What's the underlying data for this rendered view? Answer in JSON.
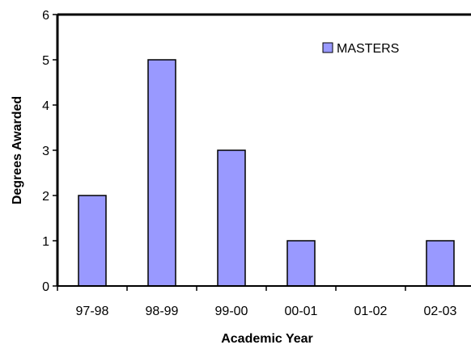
{
  "chart_data": {
    "type": "bar",
    "categories": [
      "97-98",
      "98-99",
      "99-00",
      "00-01",
      "01-02",
      "02-03"
    ],
    "series": [
      {
        "name": "MASTERS",
        "values": [
          2,
          5,
          3,
          1,
          0,
          1
        ],
        "color": "#9999ff"
      }
    ],
    "xlabel": "Academic Year",
    "ylabel": "Degrees Awarded",
    "ylim": [
      0,
      6
    ],
    "yticks": [
      "0",
      "1",
      "2",
      "3",
      "4",
      "5",
      "6"
    ],
    "grid": false,
    "legend": "top-right"
  }
}
